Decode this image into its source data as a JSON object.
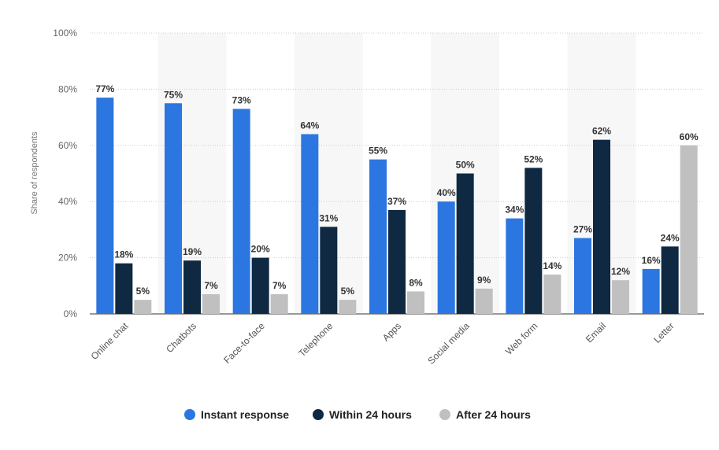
{
  "chart_data": {
    "type": "bar",
    "ylabel": "Share of respondents",
    "ylim": [
      0,
      100
    ],
    "y_ticks": [
      "0%",
      "20%",
      "40%",
      "60%",
      "80%",
      "100%"
    ],
    "y_tick_values": [
      0,
      20,
      40,
      60,
      80,
      100
    ],
    "grid": true,
    "legend_position": "bottom",
    "categories": [
      "Online chat",
      "Chatbots",
      "Face-to-face",
      "Telephone",
      "Apps",
      "Social media",
      "Web form",
      "Email",
      "Letter"
    ],
    "series": [
      {
        "name": "Instant response",
        "color": "#2b76e0",
        "values": [
          77,
          75,
          73,
          64,
          55,
          40,
          34,
          27,
          16
        ]
      },
      {
        "name": "Within 24 hours",
        "color": "#0f2942",
        "values": [
          18,
          19,
          20,
          31,
          37,
          50,
          52,
          62,
          24
        ]
      },
      {
        "name": "After 24 hours",
        "color": "#c0c0c0",
        "values": [
          5,
          7,
          7,
          5,
          8,
          9,
          14,
          12,
          60
        ]
      }
    ]
  }
}
